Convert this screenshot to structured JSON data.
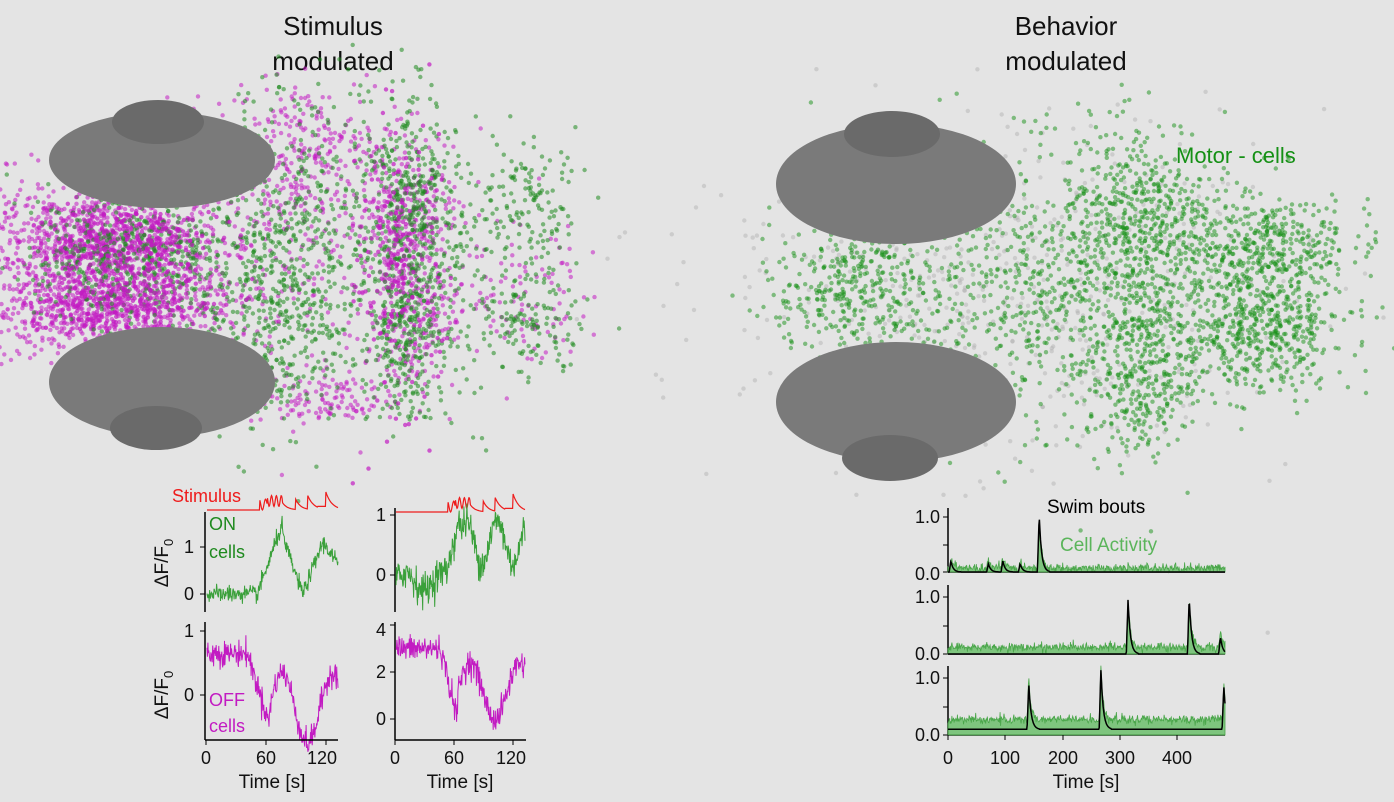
{
  "colors": {
    "on": "#1f8a1f",
    "off": "#c21bc2",
    "stimulus": "#ee1c1c",
    "motor": "#159015",
    "cell_activity": "#5bb55b",
    "swim": "#000000",
    "eye": "#7a7a7a"
  },
  "left_panel": {
    "title_line1": "Stimulus",
    "title_line2": "modulated"
  },
  "right_panel": {
    "title_line1": "Behavior",
    "title_line2": "modulated",
    "motor_label": "Motor - cells"
  },
  "stim_traces": {
    "stimulus_label": "Stimulus",
    "on_label_1": "ON",
    "on_label_2": "cells",
    "off_label_1": "OFF",
    "off_label_2": "cells",
    "y_label": "ΔF/F",
    "y_label_sub": "0",
    "x_label": "Time [s]",
    "x_ticks": [
      "0",
      "60",
      "120"
    ],
    "panels": [
      {
        "id": "on-left",
        "y_ticks": [
          "0",
          "1"
        ]
      },
      {
        "id": "on-right",
        "y_ticks": [
          "0",
          "1"
        ]
      },
      {
        "id": "off-left",
        "y_ticks": [
          "0",
          "1"
        ]
      },
      {
        "id": "off-right",
        "y_ticks": [
          "0",
          "2",
          "4"
        ]
      }
    ]
  },
  "behavior_traces": {
    "swim_label": "Swim bouts",
    "cell_label": "Cell Activity",
    "x_label": "Time [s]",
    "x_ticks": [
      "0",
      "100",
      "200",
      "300",
      "400"
    ],
    "y_ticks": [
      "0.0",
      "1.0"
    ]
  },
  "chart_data": [
    {
      "type": "line",
      "name": "on-cells-left",
      "x_range": [
        0,
        130
      ],
      "series": [
        {
          "name": "ON cells",
          "values_desc": "low 0-50 s, rises to ~1.4 at ~70 s, dips ~0 at 95 s, peak ~1.2 at 115 s"
        }
      ],
      "ylim": [
        -0.3,
        1.6
      ]
    },
    {
      "type": "line",
      "name": "on-cells-right",
      "x_range": [
        0,
        130
      ],
      "series": [
        {
          "name": "ON cells",
          "values_desc": "noisy ~0 until 50 s, ~1 at 60-80 s, oscillating after"
        }
      ],
      "ylim": [
        -0.6,
        1.1
      ]
    },
    {
      "type": "line",
      "name": "off-cells-left",
      "x_range": [
        0,
        130
      ],
      "series": [
        {
          "name": "OFF cells",
          "values_desc": "~0.7 at 0-40 s, falls to -0.5 at 60 s, oscillating after"
        }
      ],
      "ylim": [
        -0.6,
        1.1
      ]
    },
    {
      "type": "line",
      "name": "off-cells-right",
      "x_range": [
        0,
        130
      ],
      "series": [
        {
          "name": "OFF cells",
          "values_desc": "~3 at 0-45 s, falls to ~0 at 60 s, oscillating after"
        }
      ],
      "ylim": [
        -0.6,
        4.0
      ]
    },
    {
      "type": "line",
      "name": "behavior-traces",
      "x_range": [
        0,
        480
      ],
      "ylim": [
        0,
        1.2
      ],
      "rows": [
        {
          "swim_peaks": [
            [
              5,
              0.2
            ],
            [
              70,
              0.15
            ],
            [
              95,
              0.2
            ],
            [
              125,
              0.15
            ],
            [
              158,
              1.05
            ]
          ]
        },
        {
          "swim_peaks": [
            [
              312,
              0.95
            ],
            [
              418,
              1.0
            ],
            [
              472,
              0.3
            ],
            [
              483,
              0.75
            ]
          ]
        },
        {
          "swim_peaks": [
            [
              140,
              0.8
            ],
            [
              265,
              1.05
            ],
            [
              478,
              0.75
            ]
          ]
        }
      ]
    }
  ]
}
